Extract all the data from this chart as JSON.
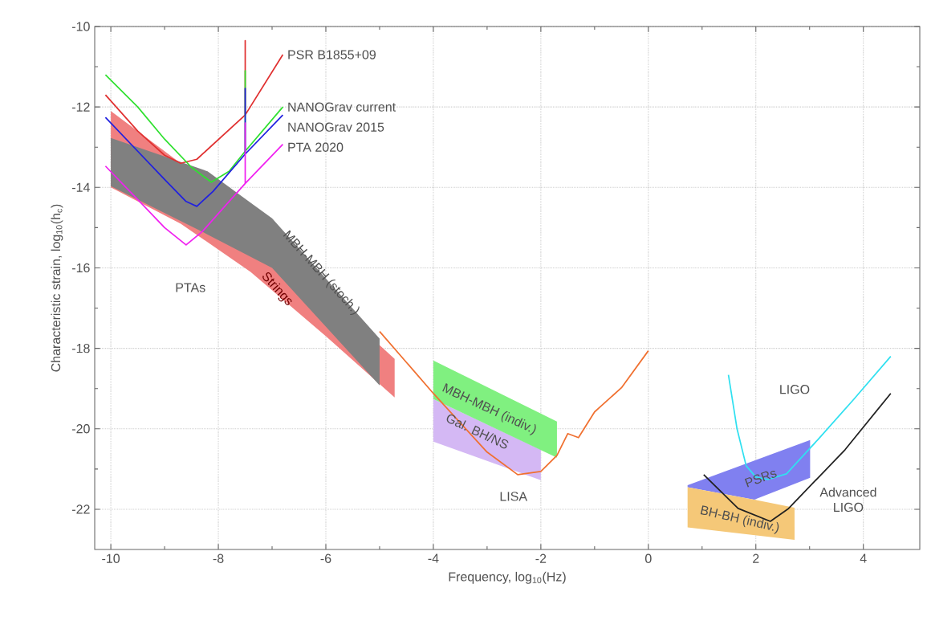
{
  "chart_data": {
    "type": "line",
    "xlabel": "Frequency, log$_{10}$(Hz)",
    "ylabel": "Characteristic strain, log$_{10}$(h$_{c}$)",
    "xlim": [
      -10.3,
      5.05
    ],
    "ylim": [
      -23,
      -10
    ],
    "xticks": [
      -10,
      -8,
      -6,
      -4,
      -2,
      0,
      2,
      4
    ],
    "yticks": [
      -22,
      -20,
      -18,
      -16,
      -14,
      -12,
      -10
    ],
    "grid": true,
    "series": [
      {
        "type": "area",
        "color": "#f08080",
        "x": [
          -10,
          -8.7,
          -4.72,
          -4.72,
          -6,
          -7.4,
          -8.7,
          -10
        ],
        "values": [
          -12.1,
          -13.4,
          -18.26,
          -19.22,
          -17.7,
          -16.1,
          -14.9,
          -14.0
        ]
      },
      {
        "type": "area",
        "color": "#808080",
        "x": [
          -10,
          -8.2,
          -7,
          -5,
          -5,
          -7,
          -8.2,
          -10
        ],
        "values": [
          -12.77,
          -13.6,
          -14.77,
          -17.76,
          -18.92,
          -16.0,
          -15.17,
          -13.97
        ]
      },
      {
        "type": "area",
        "color": "#d4b8f4",
        "x": [
          -4,
          -2,
          -2,
          -4
        ],
        "values": [
          -19.26,
          -20.52,
          -21.28,
          -20.32
        ]
      },
      {
        "type": "area",
        "color": "#80f080",
        "x": [
          -4,
          -1.7,
          -1.7,
          -4
        ],
        "values": [
          -18.3,
          -19.82,
          -20.72,
          -19.26
        ]
      },
      {
        "type": "area",
        "color": "#8080f0",
        "x": [
          0.73,
          3.01,
          3.01,
          1.97,
          0.73
        ],
        "values": [
          -21.4,
          -20.28,
          -21.22,
          -21.76,
          -21.45
        ]
      },
      {
        "type": "area",
        "color": "#f5c878",
        "x": [
          0.73,
          1.97,
          2.72,
          2.72,
          0.73
        ],
        "values": [
          -21.45,
          -21.76,
          -21.96,
          -22.76,
          -22.45
        ]
      },
      {
        "type": "line",
        "name": "PSR B1855+09",
        "color": "#e03030",
        "x": [
          -10.1,
          -9.5,
          -9,
          -8.7,
          -8.4,
          -7.5,
          -7.5,
          -7.5,
          -6.8
        ],
        "values": [
          -11.7,
          -12.6,
          -13.2,
          -13.4,
          -13.3,
          -12.2,
          -10.35,
          -12.2,
          -10.7
        ]
      },
      {
        "type": "line",
        "name": "NANOGrav current",
        "color": "#30e030",
        "x": [
          -10.1,
          -9.5,
          -9,
          -8.5,
          -8.13,
          -7.8,
          -7.5,
          -7.5,
          -7.5,
          -6.8
        ],
        "values": [
          -11.2,
          -12.0,
          -12.8,
          -13.5,
          -13.87,
          -13.6,
          -13.1,
          -11.1,
          -13.1,
          -12.0
        ]
      },
      {
        "type": "line",
        "name": "NANOGrav 2015",
        "color": "#2020e0",
        "x": [
          -10.1,
          -9.5,
          -9,
          -8.6,
          -8.4,
          -8.1,
          -7.5,
          -7.5,
          -7.5,
          -6.8
        ],
        "values": [
          -12.26,
          -13.1,
          -13.8,
          -14.35,
          -14.47,
          -14.1,
          -13.17,
          -11.54,
          -13.17,
          -12.2
        ]
      },
      {
        "type": "line",
        "name": "PTA 2020",
        "color": "#f020f0",
        "x": [
          -10.1,
          -9.5,
          -9,
          -8.6,
          -8.3,
          -7.5,
          -7.5,
          -7.5,
          -6.8
        ],
        "values": [
          -13.47,
          -14.3,
          -15.0,
          -15.43,
          -15.1,
          -13.9,
          -12.4,
          -13.9,
          -12.93
        ]
      },
      {
        "type": "line",
        "color": "#f07030",
        "x": [
          -5,
          -4,
          -3,
          -2.43,
          -2,
          -1.7,
          -1.5,
          -1.3,
          -1,
          -0.5,
          0
        ],
        "values": [
          -17.58,
          -19.12,
          -20.58,
          -21.14,
          -21.06,
          -20.66,
          -20.12,
          -20.22,
          -19.58,
          -18.98,
          -18.06
        ]
      },
      {
        "type": "line",
        "color": "#30e0f0",
        "x": [
          1.49,
          1.65,
          1.82,
          2.0,
          2.22,
          2.57,
          3.16,
          3.8,
          4.51
        ],
        "values": [
          -18.66,
          -20.0,
          -20.92,
          -21.2,
          -21.26,
          -21.12,
          -20.26,
          -19.3,
          -18.2
        ]
      },
      {
        "type": "line",
        "color": "#202020",
        "x": [
          1.03,
          1.67,
          2.27,
          2.61,
          3.66,
          4.51
        ],
        "values": [
          -21.14,
          -21.98,
          -22.3,
          -21.98,
          -20.52,
          -19.12
        ]
      }
    ],
    "annotations": [
      "PTAs",
      "MBH-MBH (stoch.)",
      "Strings",
      "MBH-MBH (indiv.)",
      "Gal. BH/NS",
      "LISA",
      "LIGO",
      "PSRs",
      "BH-BH (indiv.)",
      "Advanced LIGO"
    ]
  }
}
